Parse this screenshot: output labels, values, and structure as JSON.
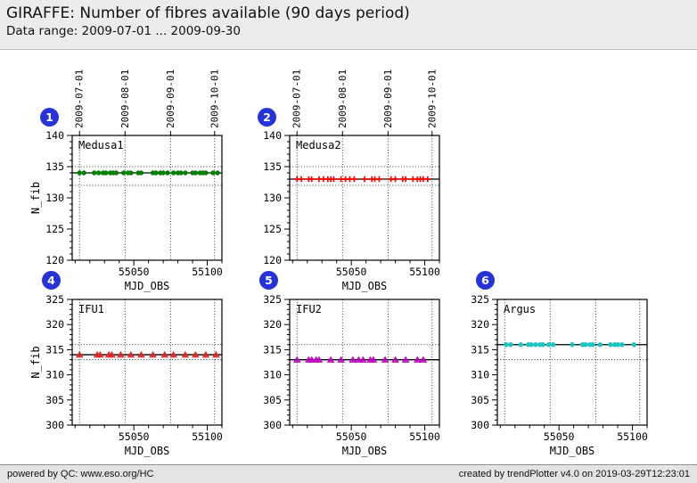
{
  "header": {
    "title": "GIRAFFE: Number of fibres available (90 days period)",
    "subtitle": "Data range: 2009-07-01 ... 2009-09-30"
  },
  "footer": {
    "left": "powered by QC: www.eso.org/HC",
    "right": "created by trendPlotter v4.0 on 2019-03-29T12:23:01"
  },
  "colors": {
    "badge_bg": "#2533d8",
    "axis": "#000000"
  },
  "chart_data": [
    {
      "type": "scatter",
      "badge": "1",
      "title": "Medusa1",
      "marker": "circle",
      "color": "#007f00",
      "xlabel": "MJD_OBS",
      "ylabel": "N_fib",
      "xlim": [
        55008,
        55110
      ],
      "ylim": [
        120,
        140
      ],
      "xticks": [
        55050,
        55100
      ],
      "yticks": [
        120,
        125,
        130,
        135,
        140
      ],
      "x_minor_step": 10,
      "y_minor_step": 1,
      "show_top_labels": true,
      "top_dates": [
        {
          "label": "2009-07-01",
          "mjd": 55013
        },
        {
          "label": "2009-08-01",
          "mjd": 55044
        },
        {
          "label": "2009-09-01",
          "mjd": 55075
        },
        {
          "label": "2009-10-01",
          "mjd": 55105
        }
      ],
      "mean_line": 134,
      "thresholds": [
        135,
        132
      ],
      "y_const": 134,
      "x": [
        55013,
        55016,
        55023,
        55026,
        55029,
        55031,
        55034,
        55036,
        55038,
        55043,
        55046,
        55048,
        55053,
        55055,
        55063,
        55065,
        55068,
        55070,
        55073,
        55077,
        55080,
        55082,
        55085,
        55090,
        55092,
        55095,
        55097,
        55099,
        55104,
        55107
      ]
    },
    {
      "type": "scatter",
      "badge": "2",
      "title": "Medusa2",
      "marker": "plus",
      "color": "#ff0000",
      "xlabel": "MJD_OBS",
      "ylabel": null,
      "xlim": [
        55008,
        55110
      ],
      "ylim": [
        120,
        140
      ],
      "xticks": [
        55050,
        55100
      ],
      "yticks": [
        120,
        125,
        130,
        135,
        140
      ],
      "x_minor_step": 10,
      "y_minor_step": 1,
      "show_top_labels": true,
      "top_dates": [
        {
          "label": "2009-07-01",
          "mjd": 55013
        },
        {
          "label": "2009-08-01",
          "mjd": 55044
        },
        {
          "label": "2009-09-01",
          "mjd": 55075
        },
        {
          "label": "2009-10-01",
          "mjd": 55105
        }
      ],
      "mean_line": 133,
      "thresholds": [
        135,
        132
      ],
      "y_const": 133,
      "x": [
        55013,
        55016,
        55021,
        55023,
        55028,
        55031,
        55034,
        55036,
        55038,
        55043,
        55046,
        55049,
        55052,
        55059,
        55064,
        55066,
        55069,
        55077,
        55080,
        55085,
        55087,
        55092,
        55095,
        55097,
        55099,
        55102
      ]
    },
    {
      "type": "scatter",
      "badge": "4",
      "title": "IFU1",
      "marker": "triangle",
      "color": "#e32222",
      "xlabel": "MJD_OBS",
      "ylabel": "N_fib",
      "xlim": [
        55008,
        55110
      ],
      "ylim": [
        300,
        325
      ],
      "xticks": [
        55050,
        55100
      ],
      "yticks": [
        300,
        305,
        310,
        315,
        320,
        325
      ],
      "x_minor_step": 10,
      "y_minor_step": 1,
      "show_top_labels": false,
      "top_dates": [
        {
          "label": "2009-07-01",
          "mjd": 55013
        },
        {
          "label": "2009-08-01",
          "mjd": 55044
        },
        {
          "label": "2009-09-01",
          "mjd": 55075
        },
        {
          "label": "2009-10-01",
          "mjd": 55105
        }
      ],
      "mean_line": 314,
      "thresholds": [
        316,
        313
      ],
      "y_const": 314,
      "x": [
        55013,
        55025,
        55027,
        55033,
        55035,
        55041,
        55048,
        55055,
        55063,
        55071,
        55077,
        55085,
        55092,
        55099,
        55106
      ]
    },
    {
      "type": "scatter",
      "badge": "5",
      "title": "IFU2",
      "marker": "triangle",
      "color": "#c000c0",
      "xlabel": "MJD_OBS",
      "ylabel": null,
      "xlim": [
        55008,
        55110
      ],
      "ylim": [
        300,
        325
      ],
      "xticks": [
        55050,
        55100
      ],
      "yticks": [
        300,
        305,
        310,
        315,
        320,
        325
      ],
      "x_minor_step": 10,
      "y_minor_step": 1,
      "show_top_labels": false,
      "top_dates": [
        {
          "label": "2009-07-01",
          "mjd": 55013
        },
        {
          "label": "2009-08-01",
          "mjd": 55044
        },
        {
          "label": "2009-09-01",
          "mjd": 55075
        },
        {
          "label": "2009-10-01",
          "mjd": 55105
        }
      ],
      "mean_line": 313,
      "thresholds": [
        316,
        313
      ],
      "y_const": 313,
      "x": [
        55013,
        55021,
        55023,
        55026,
        55028,
        55036,
        55043,
        55051,
        55055,
        55058,
        55063,
        55065,
        55073,
        55080,
        55087,
        55095,
        55099
      ]
    },
    {
      "type": "scatter",
      "badge": "6",
      "title": "Argus",
      "marker": "circle",
      "color": "#1ec3c3",
      "xlabel": "MJD_OBS",
      "ylabel": null,
      "xlim": [
        55008,
        55110
      ],
      "ylim": [
        300,
        325
      ],
      "xticks": [
        55050,
        55100
      ],
      "yticks": [
        300,
        305,
        310,
        315,
        320,
        325
      ],
      "x_minor_step": 10,
      "y_minor_step": 1,
      "show_top_labels": false,
      "top_dates": [
        {
          "label": "2009-07-01",
          "mjd": 55013
        },
        {
          "label": "2009-08-01",
          "mjd": 55044
        },
        {
          "label": "2009-09-01",
          "mjd": 55075
        },
        {
          "label": "2009-10-01",
          "mjd": 55105
        }
      ],
      "mean_line": 316,
      "thresholds": [
        316,
        313
      ],
      "y_const": 316,
      "x": [
        55014,
        55017,
        55024,
        55029,
        55031,
        55034,
        55037,
        55039,
        55043,
        55046,
        55059,
        55066,
        55068,
        55071,
        55073,
        55078,
        55085,
        55088,
        55090,
        55093,
        55101
      ]
    }
  ]
}
